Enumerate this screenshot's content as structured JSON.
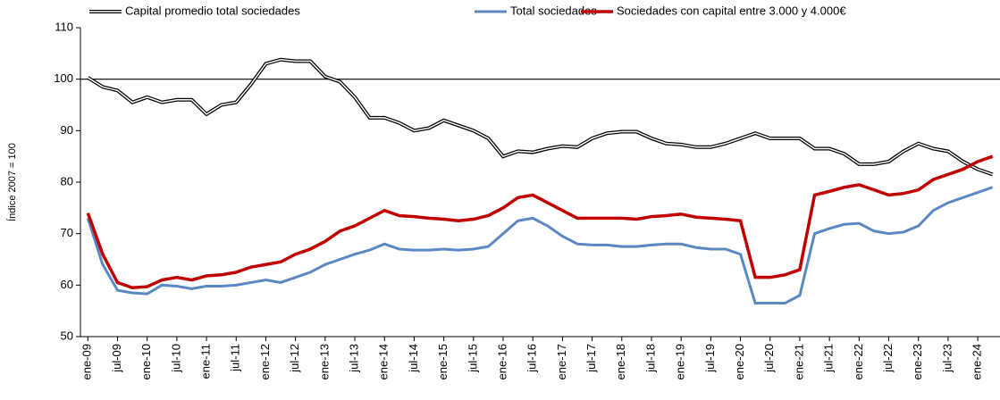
{
  "chart_data": {
    "type": "line",
    "y_label": "Índice 2007 = 100",
    "categories": [
      "ene-09",
      null,
      "jul-09",
      null,
      "ene-10",
      null,
      "jul-10",
      null,
      "ene-11",
      null,
      "jul-11",
      null,
      "ene-12",
      null,
      "jul-12",
      null,
      "ene-13",
      null,
      "jul-13",
      null,
      "ene-14",
      null,
      "jul-14",
      null,
      "ene-15",
      null,
      "jul-15",
      null,
      "ene-16",
      null,
      "jul-16",
      null,
      "ene-17",
      null,
      "jul-17",
      null,
      "ene-18",
      null,
      "jul-18",
      null,
      "ene-19",
      null,
      "jul-19",
      null,
      "ene-20",
      null,
      "jul-20",
      null,
      "ene-21",
      null,
      "jul-21",
      null,
      "ene-22",
      null,
      "jul-22",
      null,
      "ene-23",
      null,
      "jul-23",
      null,
      "ene-24",
      null
    ],
    "series": [
      {
        "name": "Capital promedio total sociedades",
        "color": "#000000",
        "double": true,
        "values": [
          100.3,
          98.5,
          97.8,
          95.5,
          96.5,
          95.5,
          96,
          96,
          93.2,
          95,
          95.5,
          99,
          103,
          103.8,
          103.5,
          103.5,
          100.5,
          99.5,
          96.5,
          92.5,
          92.5,
          91.5,
          90,
          90.5,
          92,
          91,
          90,
          88.5,
          85,
          86,
          85.8,
          86.5,
          87,
          86.8,
          88.5,
          89.5,
          89.8,
          89.8,
          88.5,
          87.5,
          87.3,
          86.8,
          86.8,
          87.5,
          88.5,
          89.5,
          88.5,
          88.5,
          88.5,
          86.5,
          86.5,
          85.5,
          83.5,
          83.5,
          84,
          86,
          87.5,
          86.5,
          86,
          84,
          82.5,
          81.5
        ]
      },
      {
        "name": "Total sociedades",
        "color": "#5b87c2",
        "values": [
          73,
          64,
          59,
          58.5,
          58.3,
          60,
          59.8,
          59.3,
          59.8,
          59.8,
          60,
          60.5,
          61,
          60.5,
          61.5,
          62.5,
          64,
          65,
          66,
          66.8,
          68,
          67,
          66.8,
          66.8,
          67,
          66.8,
          67,
          67.5,
          70,
          72.5,
          73,
          71.5,
          69.5,
          68,
          67.8,
          67.8,
          67.5,
          67.5,
          67.8,
          68,
          68,
          67.3,
          67,
          67,
          66,
          56.5,
          56.5,
          56.5,
          58,
          70,
          71,
          71.8,
          72,
          70.5,
          70,
          70.3,
          71.5,
          74.5,
          76,
          77,
          78,
          79
        ]
      },
      {
        "name": "Sociedades con capital entre 3.000 y 4.000€",
        "color": "#c00000",
        "values": [
          74,
          66,
          60.5,
          59.5,
          59.7,
          61,
          61.5,
          61,
          61.8,
          62,
          62.5,
          63.5,
          64,
          64.5,
          66,
          67,
          68.5,
          70.5,
          71.5,
          73,
          74.5,
          73.5,
          73.3,
          73,
          72.8,
          72.5,
          72.8,
          73.5,
          75,
          77,
          77.5,
          76,
          74.5,
          73,
          73,
          73,
          73,
          72.8,
          73.3,
          73.5,
          73.8,
          73.2,
          73,
          72.8,
          72.5,
          61.5,
          61.5,
          62,
          63,
          77.5,
          78.2,
          79,
          79.5,
          78.5,
          77.5,
          77.8,
          78.5,
          80.5,
          81.5,
          82.5,
          84,
          85
        ]
      }
    ],
    "ylim": [
      50,
      110
    ],
    "yticks": [
      50,
      60,
      70,
      80,
      90,
      100,
      110
    ],
    "reference_line": 100,
    "grid": false,
    "legend": "top"
  }
}
